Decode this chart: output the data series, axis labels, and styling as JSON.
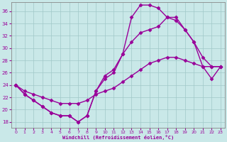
{
  "title": "",
  "xlabel": "Windchill (Refroidissement éolien,°C)",
  "ylabel": "",
  "xlim": [
    -0.5,
    23.5
  ],
  "ylim": [
    17,
    37.5
  ],
  "yticks": [
    18,
    20,
    22,
    24,
    26,
    28,
    30,
    32,
    34,
    36
  ],
  "xticks": [
    0,
    1,
    2,
    3,
    4,
    5,
    6,
    7,
    8,
    9,
    10,
    11,
    12,
    13,
    14,
    15,
    16,
    17,
    18,
    19,
    20,
    21,
    22,
    23
  ],
  "bg_color": "#c9e8e8",
  "line_color": "#990099",
  "grid_color": "#a0c8c8",
  "line1_x": [
    0,
    1,
    2,
    3,
    4,
    5,
    6,
    7,
    8,
    9,
    10,
    11,
    12,
    13,
    14,
    15,
    16,
    17,
    18,
    19,
    20,
    21,
    22,
    23
  ],
  "line1_y": [
    24,
    22.5,
    21.5,
    20.5,
    19.5,
    19,
    19,
    18,
    19,
    23,
    25,
    26,
    29,
    35,
    37,
    37,
    36.5,
    35,
    35,
    33,
    31,
    28.5,
    27,
    27
  ],
  "line2_x": [
    0,
    1,
    2,
    3,
    4,
    5,
    6,
    7,
    8,
    9,
    10,
    11,
    12,
    13,
    14,
    15,
    16,
    17,
    18,
    19,
    20,
    21,
    22,
    23
  ],
  "line2_y": [
    24,
    22.5,
    21.5,
    20.5,
    19.5,
    19,
    19,
    18,
    19,
    23,
    25.5,
    26.5,
    29,
    31,
    32.5,
    33,
    33.5,
    35,
    34.5,
    33,
    31,
    27,
    25,
    27
  ],
  "line3_x": [
    0,
    1,
    2,
    3,
    4,
    5,
    6,
    7,
    8,
    9,
    10,
    11,
    12,
    13,
    14,
    15,
    16,
    17,
    18,
    19,
    20,
    21,
    22,
    23
  ],
  "line3_y": [
    24,
    23,
    22.5,
    22,
    21.5,
    21,
    21,
    21,
    21.5,
    22.5,
    23,
    23.5,
    24.5,
    25.5,
    26.5,
    27.5,
    28,
    28.5,
    28.5,
    28,
    27.5,
    27,
    27,
    27
  ],
  "marker": "D",
  "markersize": 2.5,
  "linewidth": 1.0
}
